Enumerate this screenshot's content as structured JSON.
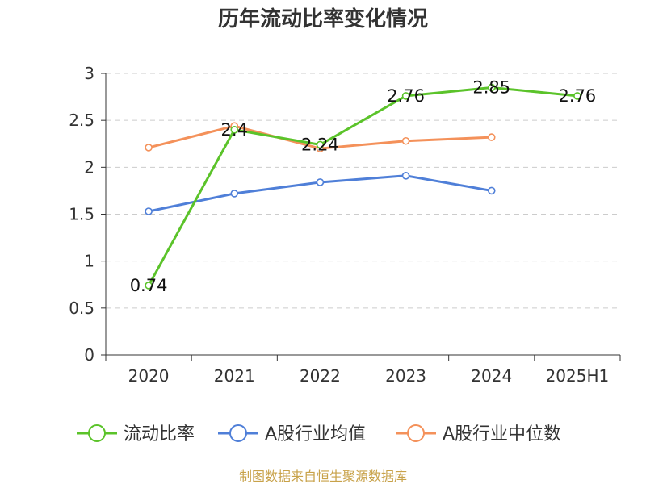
{
  "chart_data": {
    "type": "line",
    "title": "历年流动比率变化情况",
    "categories": [
      "2020",
      "2021",
      "2022",
      "2023",
      "2024",
      "2025H1"
    ],
    "ylim": [
      0,
      3
    ],
    "yticks": [
      "0",
      "0.5",
      "1",
      "1.5",
      "2",
      "2.5",
      "3"
    ],
    "grid": true,
    "legend_position": "bottom",
    "series": [
      {
        "name": "流动比率",
        "color": "#5bc32a",
        "values": [
          0.74,
          2.4,
          2.24,
          2.76,
          2.85,
          2.76
        ],
        "labels": [
          "0.74",
          "2.4",
          "2.24",
          "2.76",
          "2.85",
          "2.76"
        ]
      },
      {
        "name": "A股行业均值",
        "color": "#4f7fd8",
        "values": [
          1.53,
          1.72,
          1.84,
          1.91,
          1.75,
          null
        ]
      },
      {
        "name": "A股行业中位数",
        "color": "#f4915a",
        "values": [
          2.21,
          2.44,
          2.2,
          2.28,
          2.32,
          null
        ]
      }
    ]
  },
  "source_text": "制图数据来自恒生聚源数据库"
}
